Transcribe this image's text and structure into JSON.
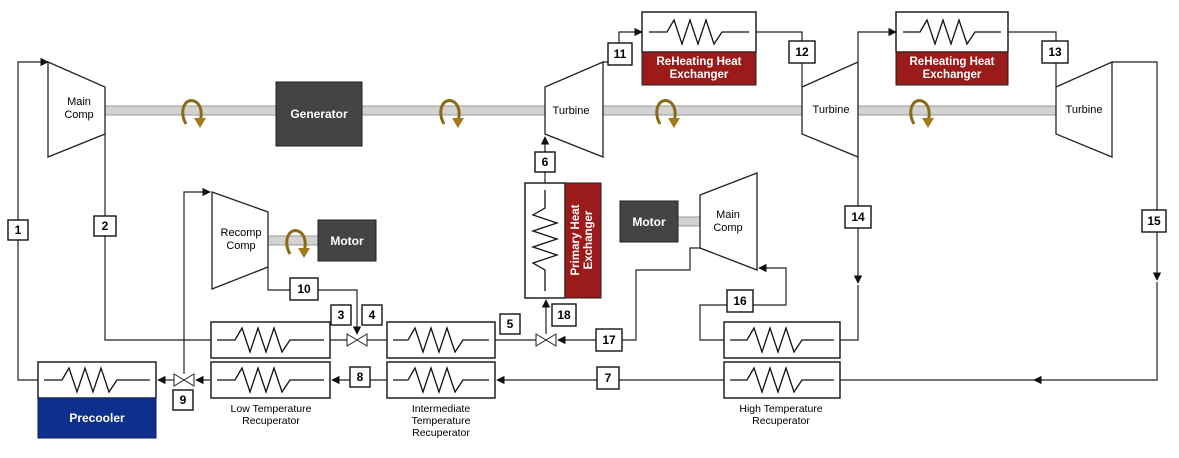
{
  "components": {
    "main_comp_1": "Main\nComp",
    "main_comp_2": "Main\nComp",
    "recomp_comp": "Recomp\nComp",
    "generator": "Generator",
    "motor_1": "Motor",
    "motor_2": "Motor",
    "turbine_1": "Turbine",
    "turbine_2": "Turbine",
    "turbine_3": "Turbine",
    "reheat_hx_1": "ReHeating Heat\nExchanger",
    "reheat_hx_2": "ReHeating Heat\nExchanger",
    "primary_hx": "Primary Heat\nExchanger",
    "precooler": "Precooler",
    "ltr": "Low Temperature\nRecuperator",
    "itr": "Intermediate\nTemperature\nRecuperator",
    "htr": "High Temperature\nRecuperator"
  },
  "state_points": [
    "1",
    "2",
    "3",
    "4",
    "5",
    "6",
    "7",
    "8",
    "9",
    "10",
    "11",
    "12",
    "13",
    "14",
    "15",
    "16",
    "17",
    "18"
  ],
  "colors": {
    "reheat": "#9b1b1b",
    "primary": "#9b1b1b",
    "dark_unit": "#444444",
    "precooler": "#0e2f8c",
    "rotation_arrow": "#a27b18",
    "shaft": "#d2d2d2"
  }
}
